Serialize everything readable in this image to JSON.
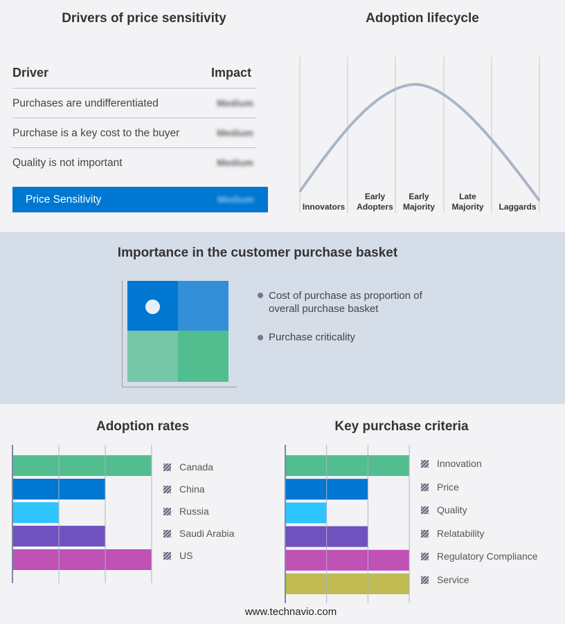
{
  "drivers": {
    "title": "Drivers of price sensitivity",
    "col_driver": "Driver",
    "col_impact": "Impact",
    "rows": [
      {
        "driver": "Purchases are undifferentiated",
        "impact": "Medium"
      },
      {
        "driver": "Purchase is a key cost to the buyer",
        "impact": "Medium"
      },
      {
        "driver": "Quality is not important",
        "impact": "Medium"
      }
    ],
    "summary": {
      "label": "Price Sensitivity",
      "impact": "Medium"
    },
    "accent": "#0077d0"
  },
  "lifecycle": {
    "title": "Adoption lifecycle",
    "stages": [
      "Innovators",
      "Early Adopters",
      "Early Majority",
      "Late Majority",
      "Laggards"
    ]
  },
  "basket": {
    "title": "Importance in the customer purchase basket",
    "legend": [
      "Cost of purchase as proportion of overall purchase basket",
      "Purchase criticality"
    ],
    "quadrant_colors": [
      "#0077d0",
      "#3390d8",
      "#76c7aa",
      "#52be90"
    ]
  },
  "chart_data": [
    {
      "type": "bar",
      "title": "Adoption rates",
      "orientation": "horizontal",
      "categories": [
        "Canada",
        "China",
        "Russia",
        "Saudi Arabia",
        "US"
      ],
      "values": [
        3,
        2,
        1,
        2,
        3
      ],
      "xlim": [
        0,
        3
      ],
      "grid": true,
      "legend": "right",
      "colors": [
        "#52be90",
        "#0077d0",
        "#2ec4ff",
        "#6f52bd",
        "#c051b5"
      ]
    },
    {
      "type": "bar",
      "title": "Key purchase criteria",
      "orientation": "horizontal",
      "categories": [
        "Innovation",
        "Price",
        "Quality",
        "Relatability",
        "Regulatory Compliance",
        "Service"
      ],
      "values": [
        3,
        2,
        1,
        2,
        3,
        3
      ],
      "xlim": [
        0,
        3
      ],
      "grid": true,
      "legend": "right",
      "colors": [
        "#52be90",
        "#0077d0",
        "#2ec4ff",
        "#6f52bd",
        "#c051b5",
        "#c0bb52"
      ]
    }
  ],
  "footer": "www.technavio.com"
}
